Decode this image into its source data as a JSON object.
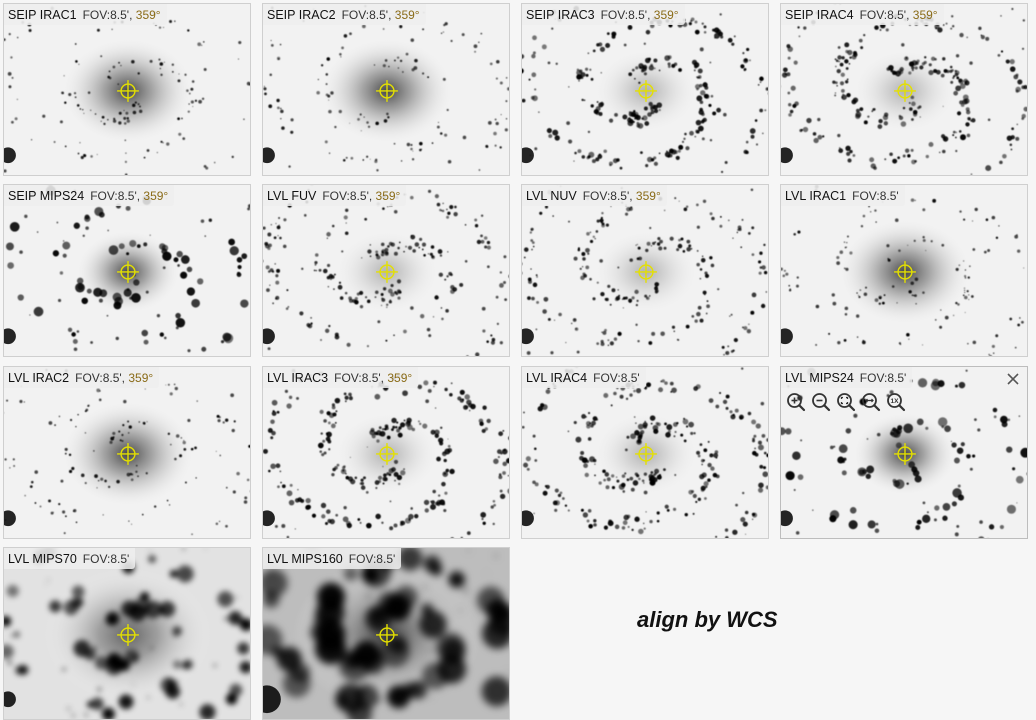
{
  "tiles": [
    {
      "name": "SEIP IRAC1",
      "fov": "FOV:8.5'",
      "rot": "359°",
      "style": "diffuse"
    },
    {
      "name": "SEIP IRAC2",
      "fov": "FOV:8.5'",
      "rot": "359°",
      "style": "diffuse"
    },
    {
      "name": "SEIP IRAC3",
      "fov": "FOV:8.5'",
      "rot": "359°",
      "style": "spiral"
    },
    {
      "name": "SEIP IRAC4",
      "fov": "FOV:8.5'",
      "rot": "359°",
      "style": "spiral"
    },
    {
      "name": "SEIP MIPS24",
      "fov": "FOV:8.5'",
      "rot": "359°",
      "style": "blobs"
    },
    {
      "name": "LVL FUV",
      "fov": "FOV:8.5'",
      "rot": "359°",
      "style": "dots"
    },
    {
      "name": "LVL NUV",
      "fov": "FOV:8.5'",
      "rot": "359°",
      "style": "dots"
    },
    {
      "name": "LVL IRAC1",
      "fov": "FOV:8.5'",
      "rot": "",
      "style": "diffuse"
    },
    {
      "name": "LVL IRAC2",
      "fov": "FOV:8.5'",
      "rot": "359°",
      "style": "diffuse"
    },
    {
      "name": "LVL IRAC3",
      "fov": "FOV:8.5'",
      "rot": "359°",
      "style": "spiral"
    },
    {
      "name": "LVL IRAC4",
      "fov": "FOV:8.5'",
      "rot": "",
      "style": "spiral"
    },
    {
      "name": "LVL MIPS24",
      "fov": "FOV:8.5'",
      "rot": "",
      "style": "blobs",
      "active": true
    },
    {
      "name": "LVL MIPS70",
      "fov": "FOV:8.5'",
      "rot": "",
      "style": "blur"
    },
    {
      "name": "LVL MIPS160",
      "fov": "FOV:8.5'",
      "rot": "",
      "style": "coarse"
    }
  ],
  "toolbar": {
    "icons": [
      "zoom-in-icon",
      "zoom-out-icon",
      "zoom-fit-icon",
      "zoom-fill-icon",
      "zoom-1x-icon"
    ],
    "one_x_label": "1X"
  },
  "align_text": "align by WCS",
  "colors": {
    "crosshair": "#e4e000",
    "rotation": "#8a6b17"
  }
}
